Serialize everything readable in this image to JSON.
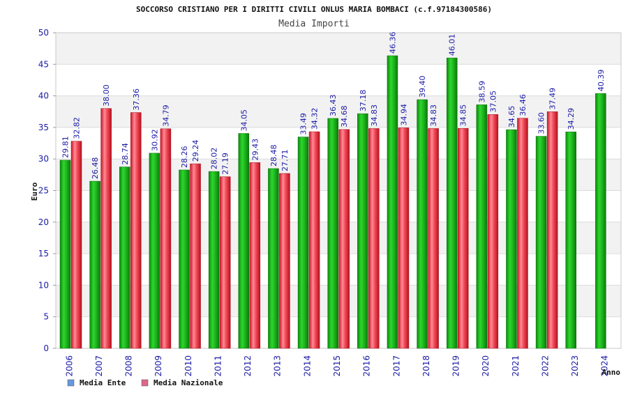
{
  "chart_data": {
    "type": "bar",
    "title": "SOCCORSO CRISTIANO PER I DIRITTI CIVILI ONLUS MARIA BOMBACI (c.f.97184300586)",
    "subtitle": "Media Importi",
    "xlabel": "Anno",
    "ylabel": "Euro",
    "ylim": [
      0,
      50
    ],
    "yticks": [
      0,
      5,
      10,
      15,
      20,
      25,
      30,
      35,
      40,
      45,
      50
    ],
    "categories": [
      "2006",
      "2007",
      "2008",
      "2009",
      "2010",
      "2011",
      "2012",
      "2013",
      "2014",
      "2015",
      "2016",
      "2017",
      "2018",
      "2019",
      "2020",
      "2021",
      "2022",
      "2023",
      "2024"
    ],
    "series": [
      {
        "name": "Media Ente",
        "color": "#22b422",
        "legend_color": "#6699dd",
        "values": [
          29.81,
          26.48,
          28.74,
          30.92,
          28.26,
          28.02,
          34.05,
          28.48,
          33.49,
          36.43,
          37.18,
          46.36,
          39.4,
          46.01,
          38.59,
          34.65,
          33.6,
          34.29,
          40.39
        ],
        "labels": [
          "29.81",
          "26.48",
          "28.74",
          "30.92",
          "28.26",
          "28.02",
          "34.05",
          "28.48",
          "33.49",
          "36.43",
          "37.18",
          "46.36",
          "39.40",
          "46.01",
          "38.59",
          "34.65",
          "33.60",
          "34.29",
          "40.39"
        ]
      },
      {
        "name": "Media Nazionale",
        "color": "#e53340",
        "legend_color": "#dd6688",
        "values": [
          32.82,
          38.0,
          37.36,
          34.79,
          29.24,
          27.19,
          29.43,
          27.71,
          34.32,
          34.68,
          34.83,
          34.94,
          34.83,
          34.85,
          37.05,
          36.46,
          37.49,
          null,
          null
        ],
        "labels": [
          "32.82",
          "38.00",
          "37.36",
          "34.79",
          "29.24",
          "27.19",
          "29.43",
          "27.71",
          "34.32",
          "34.68",
          "34.83",
          "34.94",
          "34.83",
          "34.85",
          "37.05",
          "36.46",
          "37.49",
          null,
          null
        ]
      }
    ],
    "grid": true,
    "legend_position": "bottom-left"
  }
}
